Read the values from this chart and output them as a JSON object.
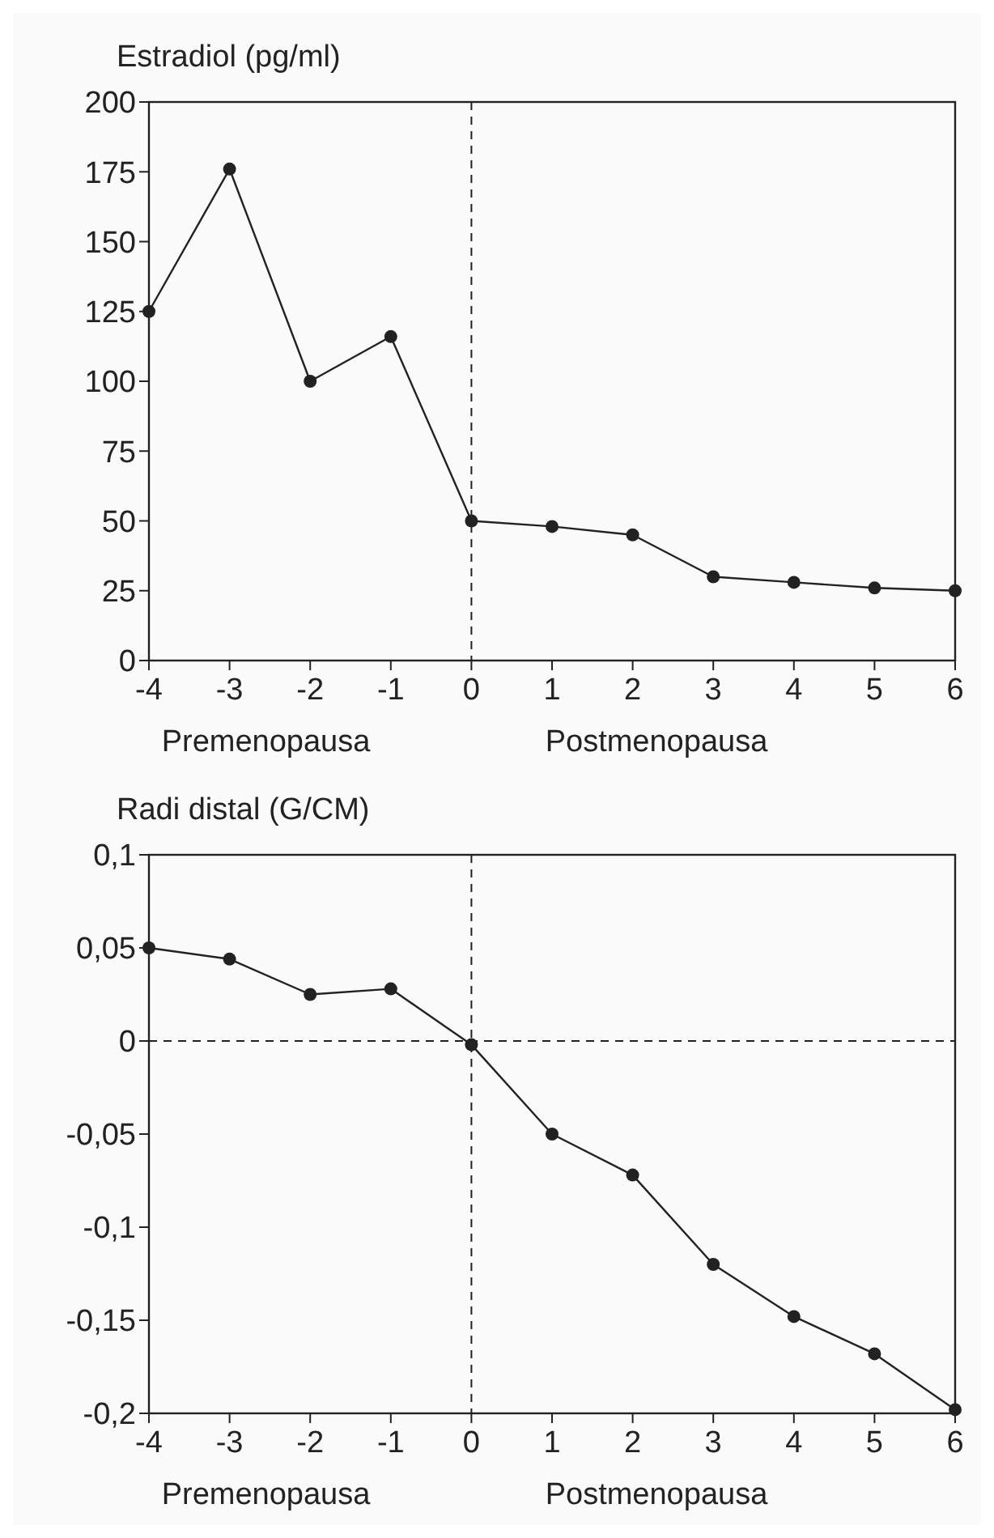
{
  "chart_data": [
    {
      "type": "line",
      "ylabel": "Estradiol (pg/ml)",
      "x": [
        -4,
        -3,
        -2,
        -1,
        0,
        1,
        2,
        3,
        4,
        5,
        6
      ],
      "series": [
        {
          "color": "#222222",
          "values": [
            125,
            176,
            100,
            116,
            50,
            48,
            45,
            30,
            28,
            26,
            25
          ]
        }
      ],
      "xlim": [
        -4,
        6
      ],
      "xticks": [
        -4,
        -3,
        -2,
        -1,
        0,
        1,
        2,
        3,
        4,
        5,
        6
      ],
      "ylim": [
        0,
        200
      ],
      "yticks": [
        0,
        25,
        50,
        75,
        100,
        125,
        150,
        175,
        200
      ],
      "marker": "circle",
      "line_style": "solid",
      "grid": false,
      "ref_lines": [
        {
          "axis": "x",
          "value": 0,
          "line_style": "dashed",
          "color": "#222222"
        }
      ],
      "annotations": [
        "Premenopausa",
        "Postmenopausa"
      ]
    },
    {
      "type": "line",
      "ylabel": "Radi distal (G/CM)",
      "x": [
        -4,
        -3,
        -2,
        -1,
        0,
        1,
        2,
        3,
        4,
        5,
        6
      ],
      "series": [
        {
          "color": "#222222",
          "values": [
            0.05,
            0.044,
            0.025,
            0.028,
            -0.002,
            -0.05,
            -0.072,
            -0.12,
            -0.148,
            -0.168,
            -0.198
          ]
        }
      ],
      "xlim": [
        -4,
        6
      ],
      "xticks": [
        -4,
        -3,
        -2,
        -1,
        0,
        1,
        2,
        3,
        4,
        5,
        6
      ],
      "ylim": [
        -0.2,
        0.1
      ],
      "yticks": [
        {
          "value": -0.2,
          "label": "-0,2"
        },
        {
          "value": -0.15,
          "label": "-0,15"
        },
        {
          "value": -0.1,
          "label": "-0,1"
        },
        {
          "value": -0.05,
          "label": "-0,05"
        },
        {
          "value": 0,
          "label": "0"
        },
        {
          "value": 0.05,
          "label": "0,05"
        },
        {
          "value": 0.1,
          "label": "0,1"
        }
      ],
      "marker": "circle",
      "line_style": "solid",
      "grid": false,
      "ref_lines": [
        {
          "axis": "x",
          "value": 0,
          "line_style": "dashed",
          "color": "#222222"
        },
        {
          "axis": "y",
          "value": 0,
          "line_style": "dashed",
          "color": "#222222"
        }
      ],
      "annotations": [
        "Premenopausa",
        "Postmenopausa"
      ]
    }
  ]
}
